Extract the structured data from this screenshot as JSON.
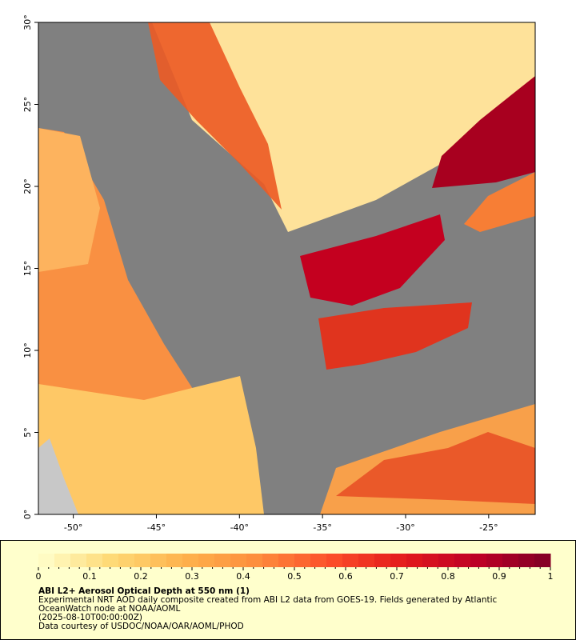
{
  "map": {
    "xlim": [
      -52.1,
      -22.2
    ],
    "ylim": [
      0,
      30
    ],
    "xticks": [
      {
        "value": -50,
        "label": "-50°"
      },
      {
        "value": -45,
        "label": "-45°"
      },
      {
        "value": -40,
        "label": "-40°"
      },
      {
        "value": -35,
        "label": "-35°"
      },
      {
        "value": -30,
        "label": "-30°"
      },
      {
        "value": -25,
        "label": "-25°"
      }
    ],
    "yticks": [
      {
        "value": 0,
        "label": "0°"
      },
      {
        "value": 5,
        "label": "5°"
      },
      {
        "value": 10,
        "label": "10°"
      },
      {
        "value": 15,
        "label": "15°"
      },
      {
        "value": 20,
        "label": "20°"
      },
      {
        "value": 25,
        "label": "25°"
      },
      {
        "value": 30,
        "label": "30°"
      }
    ]
  },
  "colorbar": {
    "range": [
      0,
      1
    ],
    "ticks": [
      0,
      0.1,
      0.2,
      0.3,
      0.4,
      0.5,
      0.6,
      0.7,
      0.8,
      0.9,
      1
    ],
    "colors": [
      "#ffffcc",
      "#fed976",
      "#feb24c",
      "#fd8d3c",
      "#fc4e2a",
      "#e31a1c",
      "#bd0026",
      "#800026"
    ]
  },
  "caption": {
    "title": "ABI L2+ Aerosol Optical Depth at 550 nm (1)",
    "lines": [
      "Experimental NRT AOD daily composite created from ABI L2 data from GOES-19. Fields generated by Atlantic",
      "OceanWatch node at NOAA/AOML",
      "(2025-08-10T00:00:00Z)",
      "Data courtesy of USDOC/NOAA/OAR/AOML/PHOD"
    ]
  }
}
